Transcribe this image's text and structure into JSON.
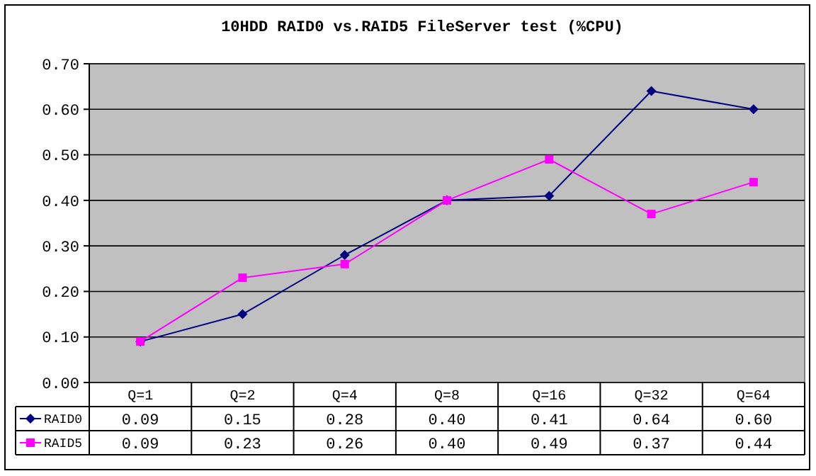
{
  "chart_data": {
    "type": "line",
    "title": "10HDD RAID0 vs.RAID5 FileServer test (%CPU)",
    "categories": [
      "Q=1",
      "Q=2",
      "Q=4",
      "Q=8",
      "Q=16",
      "Q=32",
      "Q=64"
    ],
    "series": [
      {
        "name": "RAID0",
        "color": "#000080",
        "marker": "diamond",
        "values": [
          0.09,
          0.15,
          0.28,
          0.4,
          0.41,
          0.64,
          0.6
        ],
        "value_labels": [
          "0.09",
          "0.15",
          "0.28",
          "0.40",
          "0.41",
          "0.64",
          "0.60"
        ]
      },
      {
        "name": "RAID5",
        "color": "#ff00ff",
        "marker": "square",
        "values": [
          0.09,
          0.23,
          0.26,
          0.4,
          0.49,
          0.37,
          0.44
        ],
        "value_labels": [
          "0.09",
          "0.23",
          "0.26",
          "0.40",
          "0.49",
          "0.37",
          "0.44"
        ]
      }
    ],
    "ylim": [
      0,
      0.7
    ],
    "yticks": [
      {
        "value": 0,
        "label": "0.00"
      },
      {
        "value": 0.1,
        "label": "0.10"
      },
      {
        "value": 0.2,
        "label": "0.20"
      },
      {
        "value": 0.3,
        "label": "0.30"
      },
      {
        "value": 0.4,
        "label": "0.40"
      },
      {
        "value": 0.5,
        "label": "0.50"
      },
      {
        "value": 0.6,
        "label": "0.60"
      },
      {
        "value": 0.7,
        "label": "0.70"
      }
    ],
    "grid": "y",
    "legend": "bottom"
  }
}
